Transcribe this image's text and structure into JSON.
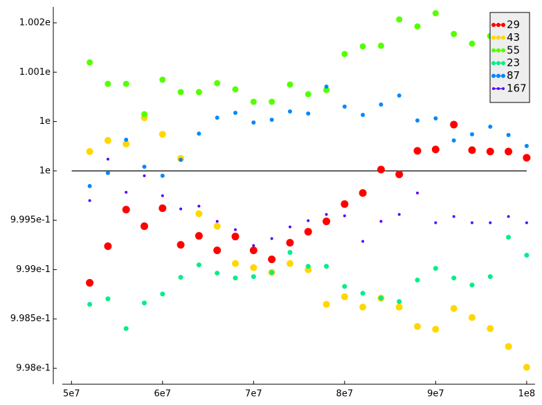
{
  "chart_data": {
    "type": "scatter",
    "x": [
      52000000,
      54000000,
      56000000,
      58000000,
      60000000,
      62000000,
      64000000,
      66000000,
      68000000,
      70000000,
      72000000,
      74000000,
      76000000,
      78000000,
      80000000,
      82000000,
      84000000,
      86000000,
      88000000,
      90000000,
      92000000,
      94000000,
      96000000,
      98000000,
      100000000
    ],
    "series": [
      {
        "name": "29",
        "color": "#ff0000",
        "marker_size": 5.5,
        "values": [
          0.998866,
          0.999237,
          0.999608,
          0.99944,
          0.999622,
          0.999251,
          0.999342,
          0.999195,
          0.999335,
          0.999195,
          0.999104,
          0.999272,
          0.999384,
          0.999489,
          0.999664,
          0.999776,
          1.000014,
          0.999965,
          1.000203,
          1.000217,
          1.000469,
          1.00021,
          1.000196,
          1.000196,
          1.000133
        ]
      },
      {
        "name": "43",
        "color": "#ffd700",
        "marker_size": 5,
        "values": [
          1.000196,
          1.000308,
          1.000273,
          1.000539,
          1.000371,
          1.000126,
          0.999566,
          0.99944,
          0.999062,
          0.99902,
          0.998971,
          0.999062,
          0.998999,
          0.998648,
          0.998725,
          0.99862,
          0.998711,
          0.99862,
          0.998424,
          0.998396,
          0.998606,
          0.998515,
          0.998403,
          0.998221,
          0.998011
        ]
      },
      {
        "name": "55",
        "color": "#55ff00",
        "marker_size": 4.5,
        "values": [
          1.001099,
          1.000882,
          1.000882,
          1.000574,
          1.000924,
          1.000798,
          1.000798,
          1.000889,
          1.000826,
          1.0007,
          1.0007,
          1.000875,
          1.000777,
          1.000819,
          1.001184,
          1.001261,
          1.001268,
          1.001534,
          1.001464,
          1.001597,
          1.001387,
          1.001289,
          1.001366,
          null,
          null
        ]
      },
      {
        "name": "23",
        "color": "#00ee88",
        "marker_size": 3.5,
        "values": [
          0.998648,
          0.998704,
          0.998403,
          0.998662,
          0.998753,
          0.998922,
          0.999048,
          0.998964,
          0.998915,
          0.998929,
          0.998971,
          0.999174,
          0.999034,
          0.999034,
          0.99883,
          0.99876,
          0.998711,
          0.998676,
          0.998894,
          0.999013,
          0.998915,
          0.998844,
          0.998929,
          0.999328,
          0.999146
        ]
      },
      {
        "name": "87",
        "color": "#0088ff",
        "marker_size": 3,
        "values": [
          0.999846,
          0.999979,
          1.000315,
          1.000042,
          0.999951,
          1.000112,
          1.000378,
          1.000539,
          1.000588,
          1.00049,
          1.000518,
          1.000602,
          1.000581,
          1.000854,
          1.000651,
          1.000567,
          1.000672,
          1.000763,
          1.000511,
          1.000532,
          1.000308,
          1.000371,
          1.000448,
          1.000364,
          1.000252
        ]
      },
      {
        "name": "167",
        "color": "#5500ff",
        "marker_size": 2,
        "values": [
          0.999699,
          1.000119,
          0.999783,
          0.999951,
          0.999748,
          0.999615,
          0.999643,
          0.999489,
          0.999405,
          0.999244,
          0.999314,
          0.999433,
          0.999496,
          0.999559,
          0.999545,
          0.999286,
          0.999489,
          0.999559,
          0.999776,
          0.999475,
          0.999538,
          0.999475,
          0.999475,
          0.999538,
          0.999475
        ]
      }
    ],
    "xlim": [
      48000000,
      101000000
    ],
    "ylim": [
      0.997839,
      1.001661
    ],
    "xticks": [
      {
        "value": 50000000,
        "label": "5e7"
      },
      {
        "value": 60000000,
        "label": "6e7"
      },
      {
        "value": 70000000,
        "label": "7e7"
      },
      {
        "value": 80000000,
        "label": "8e7"
      },
      {
        "value": 90000000,
        "label": "9e7"
      },
      {
        "value": 100000000,
        "label": "1e8"
      }
    ],
    "yticks": [
      {
        "value": 0.998,
        "label": "9.98e-1"
      },
      {
        "value": 0.9985,
        "label": "9.985e-1"
      },
      {
        "value": 0.999,
        "label": "9.99e-1"
      },
      {
        "value": 0.9995,
        "label": "9.995e-1"
      },
      {
        "value": 1,
        "label": "1e"
      },
      {
        "value": 1.0005,
        "label": "1e"
      },
      {
        "value": 1.001,
        "label": "1.001e"
      },
      {
        "value": 1.0015,
        "label": "1.002e"
      }
    ],
    "hline": 1,
    "legend": "upper right"
  }
}
